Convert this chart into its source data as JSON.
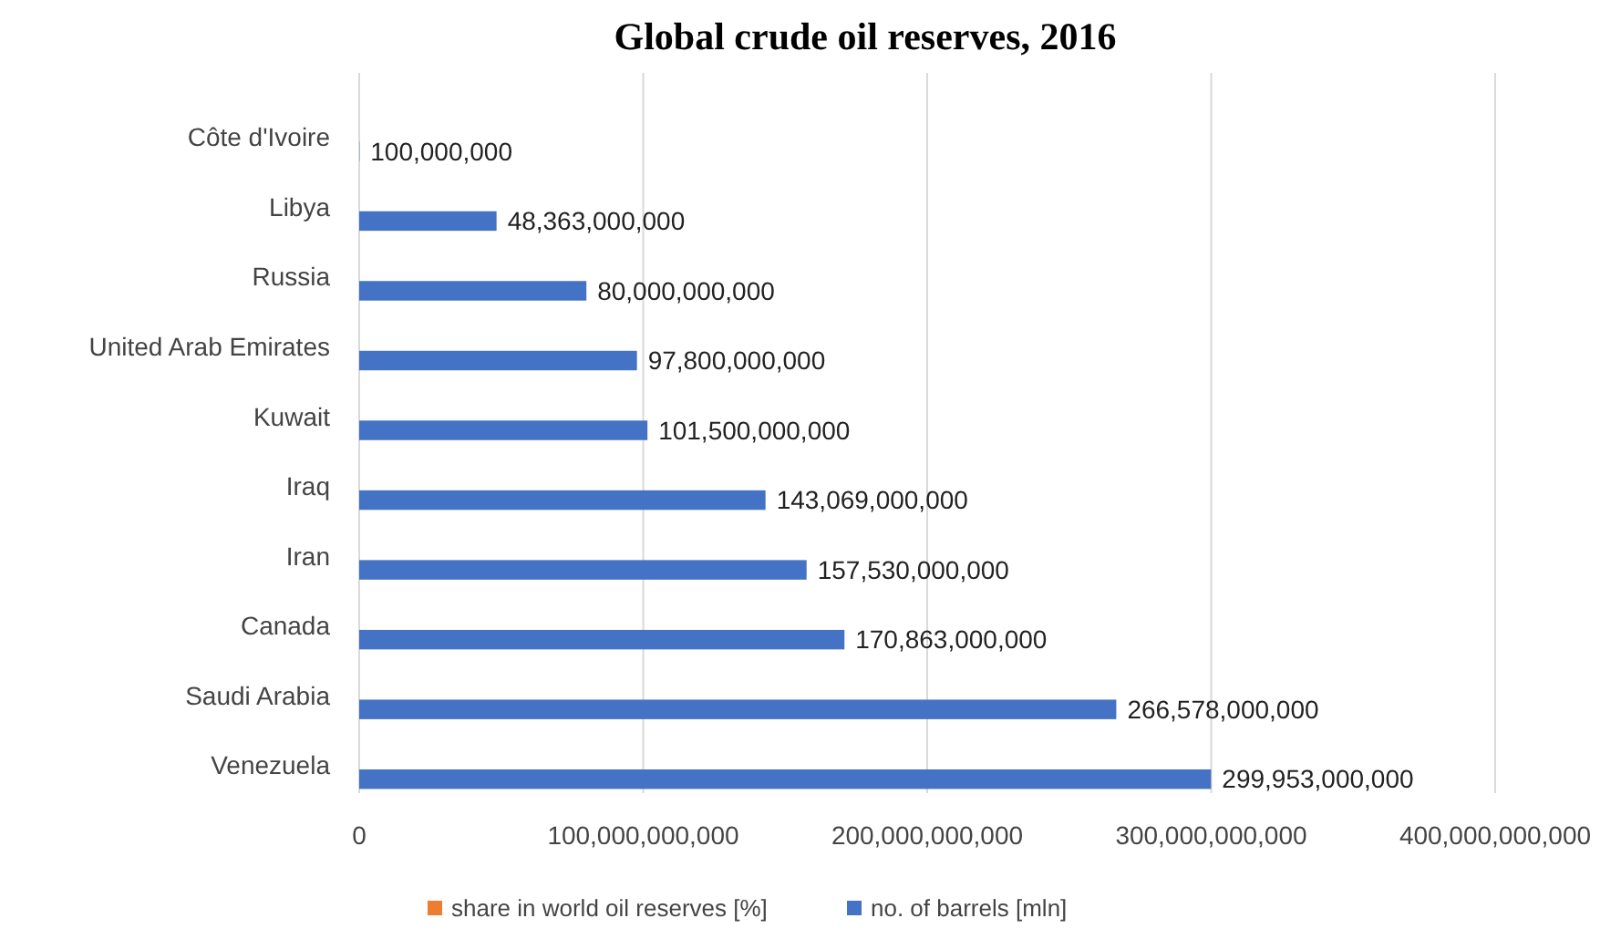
{
  "chart_data": {
    "type": "bar",
    "orientation": "horizontal",
    "title": "Global crude oil reserves, 2016",
    "categories": [
      "Côte d'Ivoire",
      "Libya",
      "Russia",
      "United Arab Emirates",
      "Kuwait",
      "Iraq",
      "Iran",
      "Canada",
      "Saudi Arabia",
      "Venezuela"
    ],
    "series": [
      {
        "name": "share in world oil reserves [%]",
        "color": "#ed7d31",
        "values": [
          null,
          null,
          null,
          null,
          null,
          null,
          null,
          null,
          null,
          null
        ]
      },
      {
        "name": "no. of barrels [mln]",
        "color": "#4472c4",
        "values": [
          100000000,
          48363000000,
          80000000000,
          97800000000,
          101500000000,
          143069000000,
          157530000000,
          170863000000,
          266578000000,
          299953000000
        ],
        "value_labels": [
          "100,000,000",
          "48,363,000,000",
          "80,000,000,000",
          "97,800,000,000",
          "101,500,000,000",
          "143,069,000,000",
          "157,530,000,000",
          "170,863,000,000",
          "266,578,000,000",
          "299,953,000,000"
        ]
      }
    ],
    "xlim": [
      0,
      400000000000
    ],
    "xticks": [
      0,
      {
        "value": 100000000000,
        "label": "100,000,000,000"
      },
      {
        "value": 200000000000,
        "label": "200,000,000,000"
      },
      {
        "value": 300000000000,
        "label": "300,000,000,000"
      },
      {
        "value": 400000000000,
        "label": "400,000,000,000"
      }
    ],
    "grid": "x",
    "legend": "bottom"
  }
}
